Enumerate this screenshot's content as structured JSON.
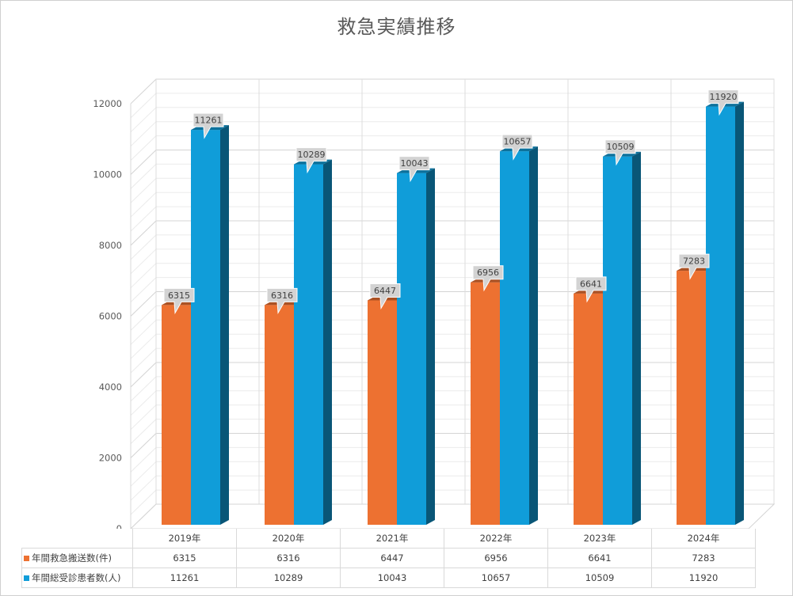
{
  "chart_data": {
    "type": "bar",
    "title": "救急実績推移",
    "categories": [
      "2019年",
      "2020年",
      "2021年",
      "2022年",
      "2023年",
      "2024年"
    ],
    "series": [
      {
        "name": "年間救急搬送数(件)",
        "color": "#ed7131",
        "values": [
          6315,
          6316,
          6447,
          6956,
          6641,
          7283
        ]
      },
      {
        "name": "年間総受診患者数(人)",
        "color": "#109dd9",
        "values": [
          11261,
          10289,
          10043,
          10657,
          10509,
          11920
        ]
      }
    ],
    "yticks": [
      "0",
      "2000",
      "4000",
      "6000",
      "8000",
      "10000",
      "12000"
    ],
    "ylim": [
      0,
      12000
    ],
    "grid": true,
    "legend": "data-table",
    "data_labels": true
  }
}
